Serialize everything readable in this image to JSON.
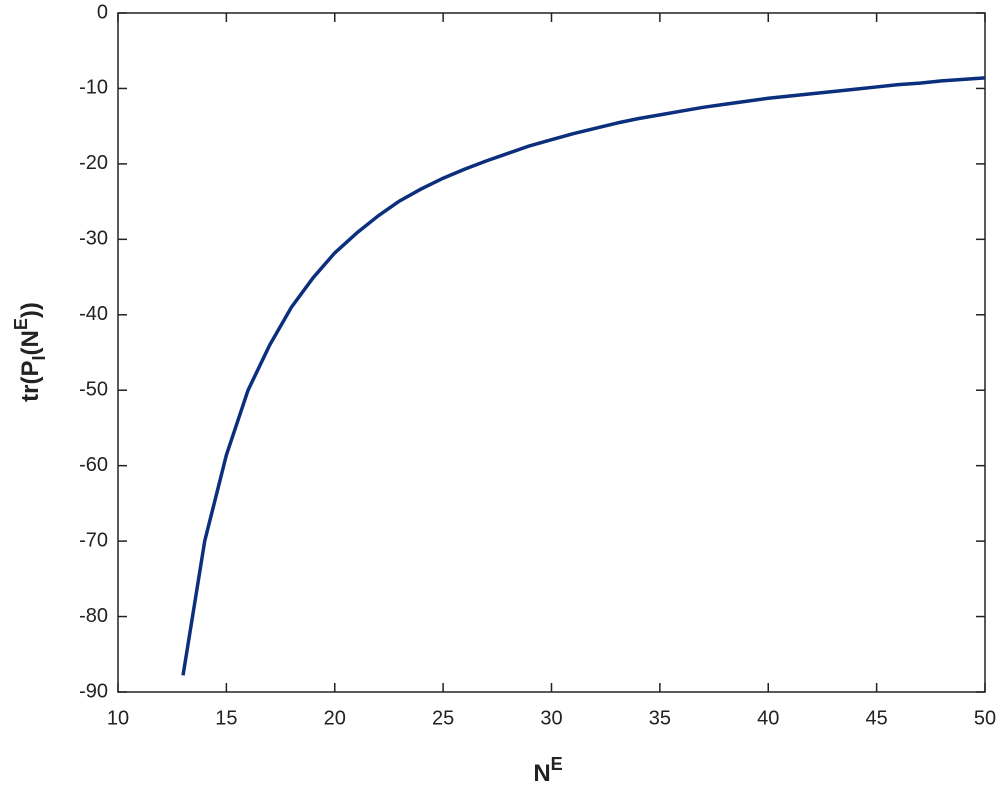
{
  "chart_data": {
    "type": "line",
    "xlabel": [
      "N",
      "E"
    ],
    "ylabel": [
      "tr(P",
      "I",
      "(N",
      "E",
      "))"
    ],
    "x": [
      13,
      14,
      15,
      16,
      17,
      18,
      19,
      20,
      21,
      22,
      23,
      24,
      25,
      26,
      27,
      28,
      29,
      30,
      31,
      32,
      33,
      34,
      35,
      36,
      37,
      38,
      39,
      40,
      41,
      42,
      43,
      44,
      45,
      46,
      47,
      48,
      49,
      50
    ],
    "series": [
      {
        "color": "#0b2f7c",
        "values": [
          -87.8,
          -70,
          -58.6,
          -50,
          -44,
          -39,
          -35.1,
          -31.8,
          -29.2,
          -26.9,
          -24.9,
          -23.3,
          -21.9,
          -20.7,
          -19.6,
          -18.6,
          -17.6,
          -16.8,
          -16.0,
          -15.3,
          -14.6,
          -14.0,
          -13.5,
          -13.0,
          -12.5,
          -12.1,
          -11.7,
          -11.3,
          -11.0,
          -10.7,
          -10.4,
          -10.1,
          -9.8,
          -9.5,
          -9.3,
          -9.0,
          -8.8,
          -8.6
        ]
      }
    ],
    "xlim": [
      10,
      50
    ],
    "xticks": [
      10,
      15,
      20,
      25,
      30,
      35,
      40,
      45,
      50
    ],
    "ylim": [
      -90,
      0
    ],
    "yticks": [
      -90,
      -80,
      -70,
      -60,
      -50,
      -40,
      -30,
      -20,
      -10,
      0
    ]
  }
}
